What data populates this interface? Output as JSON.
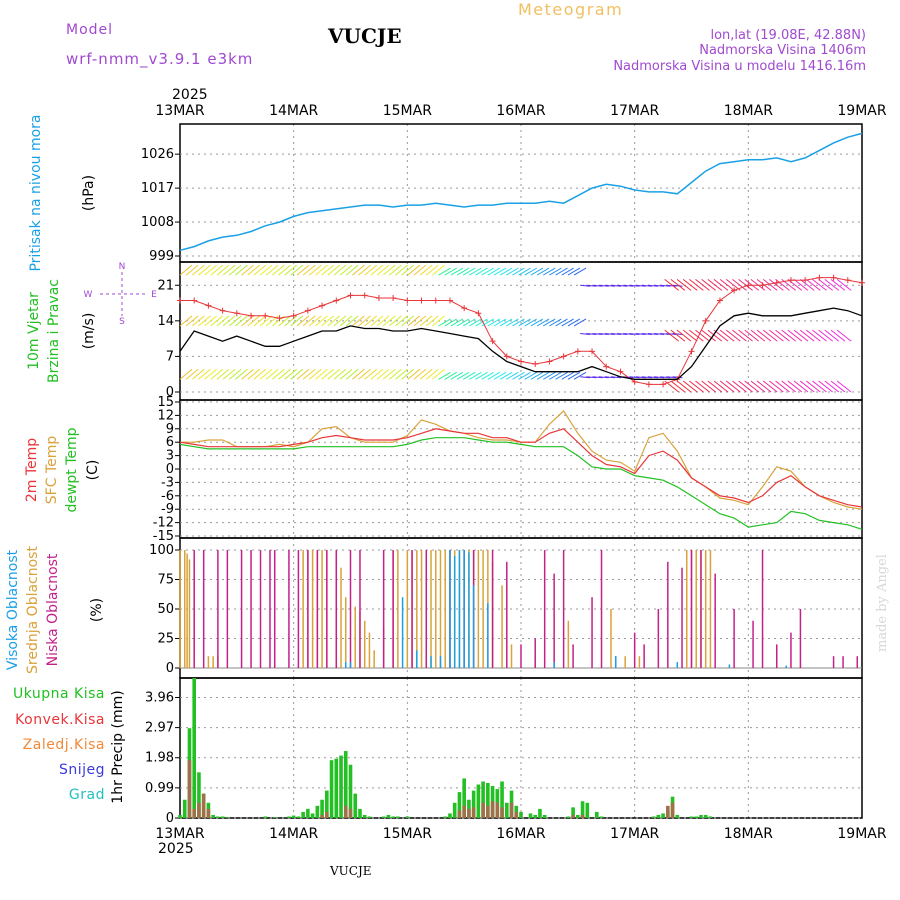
{
  "header": {
    "model_label": "Model",
    "model_name": "wrf-nmm_v3.9.1  e3km",
    "station": "VUCJE",
    "product": "Meteogram",
    "lonlat": "lon,lat (19.08E, 42.88N)",
    "elevation": "Nadmorska Visina 1406m",
    "model_elevation": "Nadmorska Visina u modelu 1416.16m",
    "footer_station": "VUCJE",
    "credit": "made by Angel"
  },
  "time_axis": {
    "year": "2025",
    "labels": [
      "13MAR",
      "14MAR",
      "15MAR",
      "16MAR",
      "17MAR",
      "18MAR",
      "19MAR"
    ]
  },
  "colors": {
    "pressure": "#1aa0e6",
    "wind_speed": "#000000",
    "gust": "#e8363a",
    "t2m": "#e8363a",
    "tsfc": "#d9a23a",
    "dewpt": "#22c022",
    "cloud_high": "#1aa0e6",
    "cloud_mid": "#d9a23a",
    "cloud_low": "#c4208a",
    "precip_total": "#22c022",
    "precip_conv": "#e8363a",
    "precip_frozen": "#f08a3a",
    "snow": "#3a3ae0",
    "grad": "#22c0c0",
    "label_purple": "#a04ad0",
    "label_orange": "#f0c060"
  },
  "chart_data": [
    {
      "type": "line",
      "name": "pressure",
      "title_lines": [
        "Pritisak na nivou mora"
      ],
      "unit": "(hPa)",
      "ylim": [
        999,
        1034
      ],
      "yticks": [
        999,
        1008,
        1017,
        1026
      ],
      "x": [
        0,
        3,
        6,
        9,
        12,
        15,
        18,
        21,
        24,
        27,
        30,
        33,
        36,
        39,
        42,
        45,
        48,
        51,
        54,
        57,
        60,
        63,
        66,
        69,
        72,
        75,
        78,
        81,
        84,
        87,
        90,
        93,
        96,
        99,
        102,
        105,
        108,
        111,
        114,
        117,
        120,
        123,
        126,
        129,
        132,
        135,
        138,
        141,
        144
      ],
      "values": [
        1000.5,
        1001.5,
        1003,
        1004,
        1004.5,
        1005.5,
        1007,
        1008,
        1009.5,
        1010.5,
        1011,
        1011.5,
        1012,
        1012.5,
        1012.5,
        1012,
        1012.5,
        1012.5,
        1013,
        1012.5,
        1012,
        1012.5,
        1012.5,
        1013,
        1013,
        1013,
        1013.5,
        1013,
        1015,
        1017,
        1018,
        1017.5,
        1016.5,
        1016,
        1016,
        1015.5,
        1018.5,
        1021.5,
        1023.5,
        1024,
        1024.5,
        1024.5,
        1025,
        1024,
        1025,
        1027,
        1029,
        1030.5,
        1031.5
      ]
    },
    {
      "type": "line",
      "name": "wind",
      "title_lines": [
        "10m Vjetar",
        "Brzina i Pravac"
      ],
      "unit": "(m/s)",
      "ylim": [
        0,
        24
      ],
      "yticks": [
        0,
        7,
        14,
        21
      ],
      "compass": [
        "N",
        "S",
        "W",
        "E"
      ],
      "x": [
        0,
        3,
        6,
        9,
        12,
        15,
        18,
        21,
        24,
        27,
        30,
        33,
        36,
        39,
        42,
        45,
        48,
        51,
        54,
        57,
        60,
        63,
        66,
        69,
        72,
        75,
        78,
        81,
        84,
        87,
        90,
        93,
        96,
        99,
        102,
        105,
        108,
        111,
        114,
        117,
        120,
        123,
        126,
        129,
        132,
        135,
        138,
        141,
        144
      ],
      "series": [
        {
          "name": "speed",
          "values": [
            8,
            12,
            11,
            10,
            11,
            10,
            9,
            9,
            10,
            11,
            12,
            12,
            13,
            12.5,
            12.5,
            12,
            12,
            12.5,
            12,
            11.5,
            11,
            10.5,
            8,
            6,
            5,
            4,
            4,
            4,
            4,
            5,
            4,
            3,
            2.5,
            2.5,
            2.5,
            2.5,
            5,
            9,
            13,
            15,
            15.5,
            15,
            15,
            15,
            15.5,
            16,
            16.5,
            16,
            15
          ]
        },
        {
          "name": "gust",
          "values": [
            18,
            18,
            17,
            16,
            15.5,
            15,
            15,
            14.5,
            15,
            16,
            17,
            18,
            19,
            19,
            18.5,
            18.5,
            18,
            18,
            18,
            18,
            16.5,
            15.5,
            10,
            7,
            6,
            5.5,
            6,
            7,
            8,
            8,
            5,
            4,
            2,
            1.5,
            1.5,
            2.5,
            8,
            14,
            18,
            20,
            21,
            21,
            21.5,
            22,
            22,
            22.5,
            22.5,
            22,
            21.5
          ]
        }
      ]
    },
    {
      "type": "line",
      "name": "temperature",
      "title_lines": [
        "2m Temp",
        "SFC Temp",
        "dewpt Temp"
      ],
      "unit": "(C)",
      "ylim": [
        -15,
        15
      ],
      "yticks": [
        -15,
        -12,
        -9,
        -6,
        -3,
        0,
        3,
        6,
        9,
        12,
        15
      ],
      "x": [
        0,
        3,
        6,
        9,
        12,
        15,
        18,
        21,
        24,
        27,
        30,
        33,
        36,
        39,
        42,
        45,
        48,
        51,
        54,
        57,
        60,
        63,
        66,
        69,
        72,
        75,
        78,
        81,
        84,
        87,
        90,
        93,
        96,
        99,
        102,
        105,
        108,
        111,
        114,
        117,
        120,
        123,
        126,
        129,
        132,
        135,
        138,
        141,
        144
      ],
      "series": [
        {
          "name": "t2m",
          "values": [
            6,
            5.5,
            5,
            5,
            5,
            5,
            5,
            5,
            5.5,
            6,
            7,
            7.5,
            7,
            6.5,
            6.5,
            6.5,
            7,
            8,
            9,
            8.5,
            8,
            8,
            7,
            7,
            6,
            6,
            8,
            9,
            6,
            3,
            1,
            0.5,
            -1,
            3,
            4,
            2,
            -2,
            -4,
            -6,
            -6.5,
            -7.5,
            -6,
            -3,
            -1.5,
            -4,
            -6,
            -7,
            -8,
            -8.5
          ]
        },
        {
          "name": "tsfc",
          "values": [
            6,
            6,
            6.5,
            6.5,
            5,
            5,
            5,
            5.5,
            5,
            6,
            9,
            9.5,
            7,
            6,
            6,
            6,
            7.5,
            11,
            10,
            8.5,
            8,
            7,
            6.5,
            6.5,
            6,
            6,
            10,
            13,
            8,
            4,
            2,
            1.5,
            -0.5,
            7,
            8,
            4,
            -2,
            -4,
            -6.5,
            -7,
            -8,
            -4,
            0.5,
            -0.5,
            -4,
            -6,
            -7.5,
            -8.5,
            -9
          ]
        },
        {
          "name": "dewpt",
          "values": [
            5.5,
            5,
            4.5,
            4.5,
            4.5,
            4.5,
            4.5,
            4.5,
            4.5,
            5,
            5,
            5,
            5,
            5,
            5,
            5,
            5.5,
            6.5,
            7,
            7,
            7,
            6.5,
            6,
            6,
            5.5,
            5,
            5,
            5,
            3,
            0.5,
            0,
            0,
            -1.5,
            -2,
            -2.5,
            -4,
            -6,
            -8,
            -10,
            -11,
            -13,
            -12.5,
            -12,
            -9.5,
            -10,
            -11.5,
            -12,
            -12.5,
            -13.5
          ]
        }
      ]
    },
    {
      "type": "bar",
      "name": "cloud_cover",
      "title_lines": [
        "Visoka Oblacnost",
        "Srednja Oblacnost",
        "Niska Oblacnost"
      ],
      "unit": "(%)",
      "ylim": [
        0,
        100
      ],
      "yticks": [
        0,
        25,
        50,
        75,
        100
      ],
      "series": [
        {
          "name": "high",
          "x": [
            35,
            36,
            47,
            50,
            53,
            55,
            57,
            58,
            59,
            60,
            61,
            62,
            65,
            79,
            92,
            105,
            116,
            128
          ],
          "values": [
            5,
            5,
            60,
            15,
            10,
            10,
            100,
            95,
            100,
            100,
            98,
            70,
            55,
            5,
            10,
            5,
            3,
            2
          ]
        },
        {
          "name": "mid",
          "x": [
            0,
            1,
            1.5,
            2,
            3,
            6,
            7,
            8,
            26,
            27,
            28,
            29,
            30,
            31,
            33,
            34,
            35,
            37,
            38,
            39,
            40,
            41,
            43,
            45,
            46,
            48,
            49,
            50,
            51,
            52,
            53,
            54,
            55,
            56,
            57,
            58,
            59,
            60,
            61,
            62,
            63,
            64,
            65,
            66,
            68,
            70,
            75,
            82,
            91,
            94,
            97,
            107,
            108,
            109,
            110,
            111,
            112
          ],
          "values": [
            100,
            100,
            97,
            92,
            90,
            10,
            10,
            10,
            100,
            100,
            100,
            100,
            100,
            100,
            95,
            85,
            60,
            52,
            48,
            40,
            30,
            15,
            35,
            100,
            100,
            100,
            100,
            100,
            100,
            100,
            100,
            100,
            100,
            100,
            100,
            100,
            100,
            100,
            100,
            100,
            100,
            100,
            100,
            90,
            70,
            20,
            10,
            40,
            50,
            10,
            10,
            100,
            100,
            100,
            100,
            100,
            100
          ]
        },
        {
          "name": "low",
          "x": [
            3,
            5,
            8,
            10,
            13,
            15,
            17,
            19,
            20,
            23,
            25,
            27,
            29,
            31,
            33,
            36,
            38,
            43,
            45,
            49,
            52,
            57,
            60,
            62,
            66,
            69,
            72,
            75,
            77,
            79,
            81,
            83,
            87,
            89,
            92,
            96,
            98,
            101,
            103,
            106,
            108,
            110,
            113,
            117,
            121,
            123,
            126,
            129,
            131,
            138,
            140,
            143
          ],
          "values": [
            100,
            100,
            100,
            100,
            100,
            100,
            100,
            100,
            100,
            100,
            100,
            100,
            100,
            100,
            100,
            100,
            100,
            100,
            100,
            100,
            100,
            100,
            100,
            100,
            100,
            90,
            20,
            25,
            100,
            80,
            100,
            20,
            60,
            100,
            10,
            30,
            20,
            50,
            90,
            85,
            100,
            100,
            80,
            50,
            40,
            100,
            20,
            30,
            50,
            10,
            10,
            10
          ]
        }
      ]
    },
    {
      "type": "bar",
      "name": "precip",
      "title_lines": [
        "Ukupna Kisa",
        "Konvek.Kisa",
        "Zaledj.Kisa",
        "Snijeg",
        "Grad"
      ],
      "unit": "1hr Precip (mm)",
      "ylim": [
        0,
        4.6
      ],
      "yticks": [
        0,
        0.99,
        1.98,
        2.97,
        3.96
      ],
      "series": [
        {
          "name": "total",
          "x": [
            0,
            1,
            2,
            3,
            4,
            5,
            6,
            7,
            8,
            9,
            10,
            18,
            20,
            23,
            24,
            25,
            26,
            27,
            28,
            29,
            30,
            31,
            32,
            33,
            34,
            35,
            36,
            37,
            38,
            39,
            40,
            43,
            44,
            45,
            46,
            48,
            56,
            57,
            58,
            59,
            60,
            61,
            62,
            63,
            64,
            65,
            66,
            67,
            68,
            69,
            70,
            71,
            72,
            74,
            75,
            76,
            77,
            82,
            83,
            84,
            85,
            86,
            88,
            89,
            100,
            101,
            102,
            103,
            104,
            105,
            108,
            109,
            110,
            111,
            112
          ],
          "values": [
            0.1,
            0.6,
            2.95,
            4.6,
            1.5,
            0.8,
            0.5,
            0.1,
            0.05,
            0.05,
            0.03,
            0.05,
            0.03,
            0.05,
            0.08,
            0.05,
            0.2,
            0.3,
            0.15,
            0.4,
            0.6,
            0.9,
            1.9,
            1.95,
            2.05,
            2.2,
            1.75,
            0.8,
            0.3,
            0.1,
            0.05,
            0.05,
            0.1,
            0.05,
            0.05,
            0.05,
            0.05,
            0.15,
            0.5,
            0.85,
            1.3,
            0.6,
            0.9,
            1.1,
            1.2,
            1.15,
            1.05,
            0.95,
            1.2,
            0.5,
            0.9,
            0.4,
            0.2,
            0.15,
            0.1,
            0.3,
            0.1,
            0.05,
            0.35,
            0.1,
            0.55,
            0.5,
            0.2,
            0.05,
            0.05,
            0.1,
            0.15,
            0.25,
            0.7,
            0.1,
            0.05,
            0.05,
            0.1,
            0.1,
            0.05
          ]
        },
        {
          "name": "convective",
          "x": [
            2,
            3,
            4,
            5,
            6,
            30,
            31,
            35,
            36,
            59,
            60,
            61,
            62,
            64,
            65,
            66,
            67,
            68,
            70,
            71,
            83,
            85,
            103,
            104
          ],
          "values": [
            1.9,
            0.3,
            0.5,
            0.8,
            0.3,
            0.1,
            0.2,
            0.4,
            0.3,
            0.25,
            0.4,
            0.3,
            0.35,
            0.5,
            0.4,
            0.55,
            0.5,
            0.35,
            0.5,
            0.2,
            0.1,
            0.1,
            0.4,
            0.5
          ]
        }
      ]
    }
  ]
}
